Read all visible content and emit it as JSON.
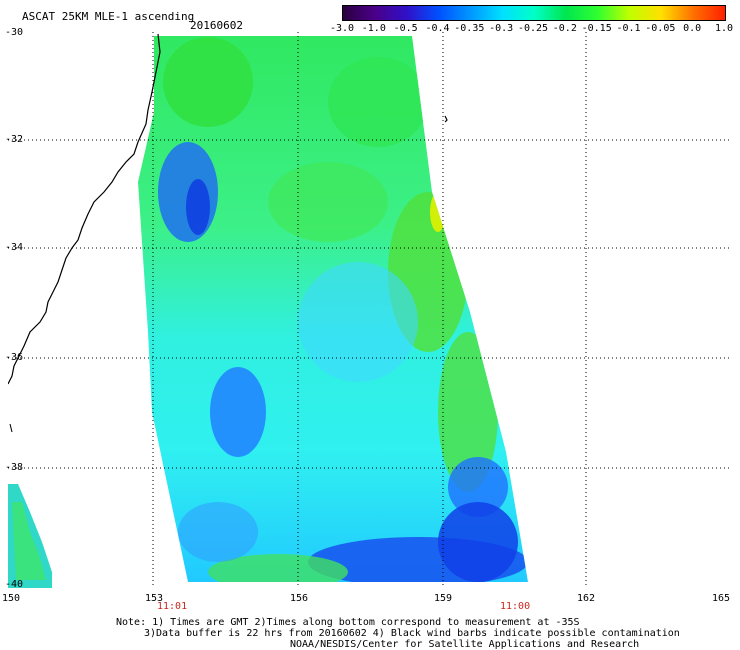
{
  "header": {
    "product": "ASCAT 25KM MLE-1 ascending",
    "date": "20160602"
  },
  "colorbar": {
    "labels": [
      "-3.0",
      "-1.0",
      "-0.5",
      "-0.4",
      "-0.35",
      "-0.3",
      "-0.25",
      "-0.2",
      "-0.15",
      "-0.1",
      "-0.05",
      "0.0",
      "1.0"
    ],
    "colors": [
      "#2a0040",
      "#4a0088",
      "#3010c8",
      "#0050ff",
      "#0096ff",
      "#00e0ff",
      "#00ffc8",
      "#00e650",
      "#30ff30",
      "#c0ff00",
      "#ffe000",
      "#ff7000",
      "#ff2000"
    ]
  },
  "map": {
    "lat_labels": [
      "-30",
      "-32",
      "-34",
      "-36",
      "-38",
      "-40"
    ],
    "lon_labels": [
      "150",
      "153",
      "156",
      "159",
      "162",
      "165"
    ],
    "time_labels": [
      "11:01",
      "11:00"
    ],
    "lat_range": [
      -40,
      -30
    ],
    "lon_range": [
      150,
      165
    ]
  },
  "footer": {
    "line1": "Note: 1) Times are GMT 2)Times along bottom correspond to measurement at -35S",
    "line2": "3)Data buffer is 22 hrs from 20160602 4) Black wind barbs indicate possible contamination",
    "line3": "NOAA/NESDIS/Center for Satellite Applications and Research"
  },
  "colors": {
    "map_background": "#ffffff",
    "coastline": "#000000",
    "time_label": "#c8281e"
  }
}
